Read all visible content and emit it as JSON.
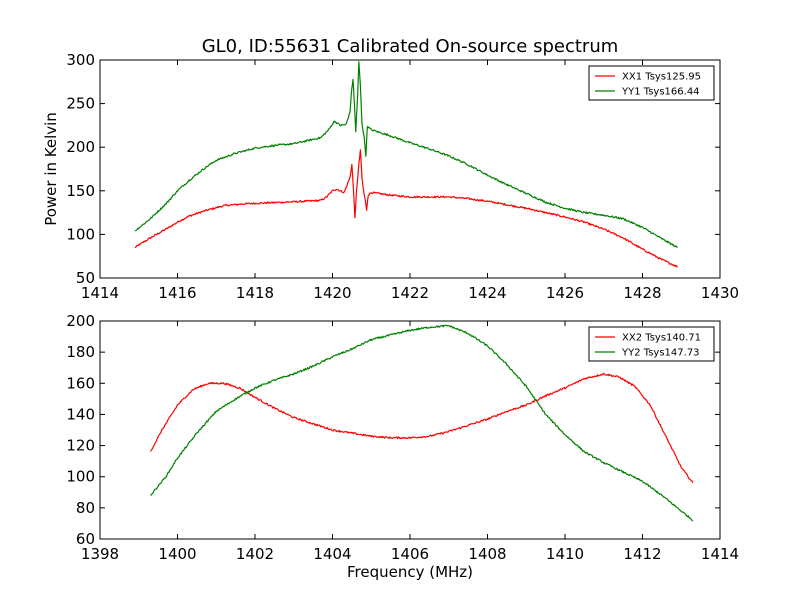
{
  "title": "GL0, ID:55631 Calibrated On-source spectrum",
  "xlabel": "Frequency (MHz)",
  "ylabel": "Power in Kelvin",
  "colors": {
    "red": "#ff0000",
    "green": "#008000"
  },
  "chart_data": [
    {
      "type": "line",
      "xlim": [
        1414,
        1430
      ],
      "ylim": [
        50,
        300
      ],
      "xticks": [
        1414,
        1416,
        1418,
        1420,
        1422,
        1424,
        1426,
        1428,
        1430
      ],
      "yticks": [
        50,
        100,
        150,
        200,
        250,
        300
      ],
      "legend_position": "top-right",
      "grid": false,
      "series": [
        {
          "name": "XX1 Tsys125.95",
          "color": "#ff0000",
          "points": [
            [
              1414.9,
              85
            ],
            [
              1415.3,
              96
            ],
            [
              1415.7,
              106
            ],
            [
              1416,
              114
            ],
            [
              1416.3,
              121
            ],
            [
              1416.7,
              127
            ],
            [
              1417.2,
              133
            ],
            [
              1417.7,
              135
            ],
            [
              1418.2,
              136
            ],
            [
              1418.8,
              137
            ],
            [
              1419.3,
              138
            ],
            [
              1419.7,
              139
            ],
            [
              1419.85,
              143
            ],
            [
              1420,
              150
            ],
            [
              1420.1,
              152
            ],
            [
              1420.3,
              148
            ],
            [
              1420.45,
              165
            ],
            [
              1420.5,
              180
            ],
            [
              1420.55,
              145
            ],
            [
              1420.58,
              118
            ],
            [
              1420.62,
              150
            ],
            [
              1420.68,
              180
            ],
            [
              1420.72,
              197
            ],
            [
              1420.76,
              165
            ],
            [
              1420.8,
              150
            ],
            [
              1420.85,
              138
            ],
            [
              1420.88,
              128
            ],
            [
              1420.92,
              145
            ],
            [
              1421,
              148
            ],
            [
              1421.5,
              145
            ],
            [
              1422,
              143
            ],
            [
              1422.5,
              143
            ],
            [
              1423,
              143
            ],
            [
              1423.5,
              141
            ],
            [
              1424,
              138
            ],
            [
              1424.5,
              134
            ],
            [
              1425,
              130
            ],
            [
              1425.5,
              125
            ],
            [
              1426,
              120
            ],
            [
              1426.5,
              114
            ],
            [
              1427,
              106
            ],
            [
              1427.5,
              96
            ],
            [
              1428,
              83
            ],
            [
              1428.5,
              71
            ],
            [
              1428.9,
              63
            ]
          ]
        },
        {
          "name": "YY1 Tsys166.44",
          "color": "#008000",
          "points": [
            [
              1414.9,
              104
            ],
            [
              1415.3,
              118
            ],
            [
              1415.7,
              135
            ],
            [
              1416,
              150
            ],
            [
              1416.3,
              162
            ],
            [
              1416.7,
              176
            ],
            [
              1417,
              185
            ],
            [
              1417.5,
              193
            ],
            [
              1418,
              199
            ],
            [
              1418.5,
              202
            ],
            [
              1419,
              204
            ],
            [
              1419.3,
              207
            ],
            [
              1419.7,
              211
            ],
            [
              1419.9,
              220
            ],
            [
              1420.05,
              230
            ],
            [
              1420.2,
              225
            ],
            [
              1420.35,
              226
            ],
            [
              1420.45,
              240
            ],
            [
              1420.5,
              268
            ],
            [
              1420.53,
              278
            ],
            [
              1420.57,
              245
            ],
            [
              1420.6,
              218
            ],
            [
              1420.65,
              260
            ],
            [
              1420.68,
              298
            ],
            [
              1420.72,
              270
            ],
            [
              1420.76,
              228
            ],
            [
              1420.82,
              210
            ],
            [
              1420.86,
              190
            ],
            [
              1420.9,
              224
            ],
            [
              1421,
              220
            ],
            [
              1421.5,
              213
            ],
            [
              1422,
              205
            ],
            [
              1422.5,
              198
            ],
            [
              1423,
              190
            ],
            [
              1423.5,
              180
            ],
            [
              1424,
              168
            ],
            [
              1424.5,
              157
            ],
            [
              1425,
              147
            ],
            [
              1425.5,
              137
            ],
            [
              1426,
              130
            ],
            [
              1426.5,
              125
            ],
            [
              1427,
              122
            ],
            [
              1427.5,
              118
            ],
            [
              1428,
              108
            ],
            [
              1428.5,
              95
            ],
            [
              1428.9,
              85
            ]
          ]
        }
      ]
    },
    {
      "type": "line",
      "xlim": [
        1398,
        1414
      ],
      "ylim": [
        60,
        200
      ],
      "xticks": [
        1398,
        1400,
        1402,
        1404,
        1406,
        1408,
        1410,
        1412,
        1414
      ],
      "yticks": [
        60,
        80,
        100,
        120,
        140,
        160,
        180,
        200
      ],
      "legend_position": "top-right",
      "grid": false,
      "series": [
        {
          "name": "XX2 Tsys140.71",
          "color": "#ff0000",
          "points": [
            [
              1399.3,
              116
            ],
            [
              1399.6,
              130
            ],
            [
              1400,
              146
            ],
            [
              1400.4,
              156
            ],
            [
              1400.8,
              160
            ],
            [
              1401.2,
              160
            ],
            [
              1401.6,
              157
            ],
            [
              1402,
              151
            ],
            [
              1402.5,
              144
            ],
            [
              1403,
              138
            ],
            [
              1403.5,
              134
            ],
            [
              1404,
              130
            ],
            [
              1404.5,
              128
            ],
            [
              1405,
              126
            ],
            [
              1405.5,
              125
            ],
            [
              1406,
              125
            ],
            [
              1406.5,
              126
            ],
            [
              1407,
              129
            ],
            [
              1407.5,
              133
            ],
            [
              1408,
              137
            ],
            [
              1408.5,
              142
            ],
            [
              1409,
              146
            ],
            [
              1409.5,
              152
            ],
            [
              1410,
              157
            ],
            [
              1410.5,
              163
            ],
            [
              1411,
              166
            ],
            [
              1411.4,
              164
            ],
            [
              1411.8,
              158
            ],
            [
              1412.2,
              146
            ],
            [
              1412.6,
              126
            ],
            [
              1413,
              106
            ],
            [
              1413.3,
              96
            ]
          ]
        },
        {
          "name": "YY2 Tsys147.73",
          "color": "#008000",
          "points": [
            [
              1399.3,
              88
            ],
            [
              1399.7,
              100
            ],
            [
              1400,
              112
            ],
            [
              1400.5,
              128
            ],
            [
              1401,
              142
            ],
            [
              1401.5,
              150
            ],
            [
              1402,
              157
            ],
            [
              1402.5,
              162
            ],
            [
              1403,
              166
            ],
            [
              1403.5,
              171
            ],
            [
              1404,
              177
            ],
            [
              1404.5,
              182
            ],
            [
              1405,
              188
            ],
            [
              1405.5,
              191
            ],
            [
              1406,
              194
            ],
            [
              1406.5,
              196
            ],
            [
              1407,
              197
            ],
            [
              1407.5,
              192
            ],
            [
              1408,
              184
            ],
            [
              1408.5,
              172
            ],
            [
              1409,
              158
            ],
            [
              1409.5,
              140
            ],
            [
              1410,
              127
            ],
            [
              1410.5,
              116
            ],
            [
              1411,
              109
            ],
            [
              1411.5,
              103
            ],
            [
              1412,
              97
            ],
            [
              1412.5,
              88
            ],
            [
              1413,
              78
            ],
            [
              1413.3,
              72
            ]
          ]
        }
      ]
    }
  ]
}
